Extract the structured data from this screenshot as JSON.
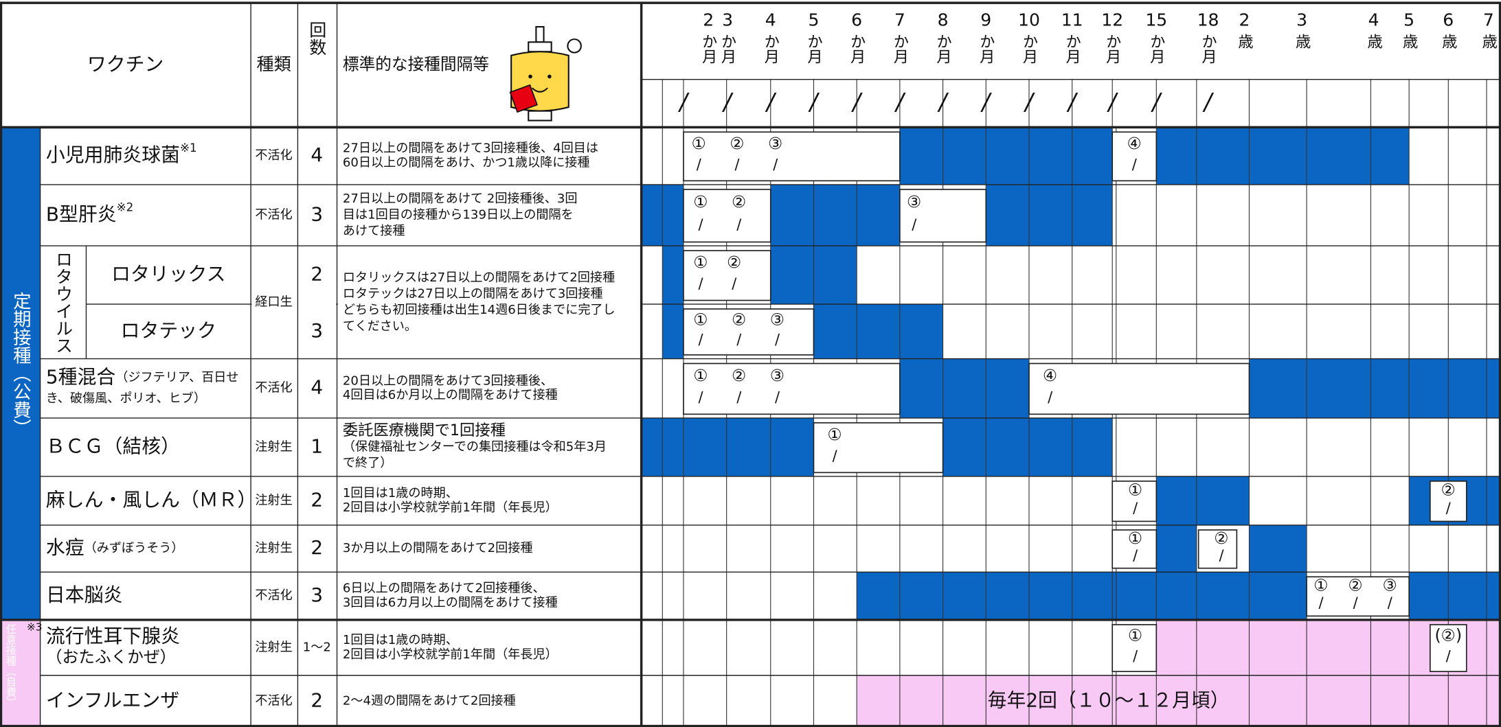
{
  "header": {
    "vaccine": "ワクチン",
    "type": "種類",
    "count": "回数",
    "interval": "標準的な接種間隔等",
    "date_mark": "/"
  },
  "ages": [
    {
      "n": "2",
      "u": "か月"
    },
    {
      "n": "3",
      "u": "か月"
    },
    {
      "n": "4",
      "u": "か月"
    },
    {
      "n": "5",
      "u": "か月"
    },
    {
      "n": "6",
      "u": "か月"
    },
    {
      "n": "7",
      "u": "か月"
    },
    {
      "n": "8",
      "u": "か月"
    },
    {
      "n": "9",
      "u": "か月"
    },
    {
      "n": "10",
      "u": "か月"
    },
    {
      "n": "11",
      "u": "か月"
    },
    {
      "n": "12",
      "u": "か月"
    },
    {
      "n": "15",
      "u": "か月"
    },
    {
      "n": "18",
      "u": "か月"
    },
    {
      "n": "2",
      "u": "歳"
    },
    {
      "n": "3",
      "u": "歳"
    },
    {
      "n": "4",
      "u": "歳"
    },
    {
      "n": "5",
      "u": "歳"
    },
    {
      "n": "6",
      "u": "歳"
    },
    {
      "n": "7",
      "u": "歳"
    }
  ],
  "groups": {
    "routine": "定期接種（公費）",
    "optional": "任意接種（自費）",
    "optional_note": "※3",
    "rota": "ロタウイルス"
  },
  "rows": [
    {
      "name": "小児用肺炎球菌",
      "note": "※1",
      "type": "不活化",
      "count": 4,
      "interval": [
        "27日以上の間隔をあけて3回接種後、4回目は",
        "60日以上の間隔をあけ、かつ1歳以降に接種"
      ],
      "doses": [
        "①",
        "②",
        "③",
        "④"
      ]
    },
    {
      "name": "B型肝炎",
      "note": "※2",
      "type": "不活化",
      "count": 3,
      "interval": [
        "27日以上の間隔をあけて 2回接種後、3回",
        "目は1回目の接種から139日以上の間隔を",
        "あけて接種"
      ],
      "doses": [
        "①",
        "②",
        "③"
      ]
    },
    {
      "name": "ロタリックス",
      "type": "経口生",
      "count": 2,
      "interval": [
        "ロタリックスは27日以上の間隔をあけて2回接種",
        "ロタテックは27日以上の間隔をあけて3回接種",
        "どちらも初回接種は出生14週6日後までに完了し",
        "てください。"
      ],
      "doses": [
        "①",
        "②"
      ]
    },
    {
      "name": "ロタテック",
      "count": 3,
      "doses": [
        "①",
        "②",
        "③"
      ]
    },
    {
      "name": "5種混合",
      "sub": "（ジフテリア、百日せ",
      "name2": "き、破傷風、ポリオ、ヒブ）",
      "type": "不活化",
      "count": 4,
      "interval": [
        "20日以上の間隔をあけて3回接種後、",
        "4回目は6か月以上の間隔をあけて接種"
      ],
      "doses": [
        "①",
        "②",
        "③",
        "④"
      ]
    },
    {
      "name": "ＢＣＧ（結核）",
      "type": "注射生",
      "count": 1,
      "interval": [
        "委託医療機関で1回接種",
        "（保健福祉センターでの集団接種は令和5年3月",
        "で終了）"
      ],
      "doses": [
        "①"
      ]
    },
    {
      "name": "麻しん・風しん（ＭＲ）",
      "type": "注射生",
      "count": 2,
      "interval": [
        "1回目は1歳の時期、",
        "2回目は小学校就学前1年間（年長児）"
      ],
      "doses": [
        "①",
        "②"
      ]
    },
    {
      "name": "水痘",
      "sub": "（みずぼうそう）",
      "type": "注射生",
      "count": 2,
      "interval": [
        "3か月以上の間隔をあけて2回接種"
      ],
      "doses": [
        "①",
        "②"
      ]
    },
    {
      "name": "日本脳炎",
      "type": "不活化",
      "count": 3,
      "interval": [
        "6日以上の間隔をあけて2回接種後、",
        "3回目は6カ月以上の間隔をあけて接種"
      ],
      "doses": [
        "①",
        "②",
        "③"
      ]
    },
    {
      "name": "流行性耳下腺炎",
      "name2": "（おたふくかぜ）",
      "type": "注射生",
      "count": "1～2",
      "interval": [
        "1回目は1歳の時期、",
        "2回目は小学校就学前1年間（年長児）"
      ],
      "doses": [
        "①",
        "(②)"
      ]
    },
    {
      "name": "インフルエンザ",
      "type": "不活化",
      "count": 2,
      "interval": [
        "2～4週の間隔をあけて2回接種"
      ],
      "doses": [],
      "band_note": "毎年2回（１０～１２月頃）"
    }
  ]
}
